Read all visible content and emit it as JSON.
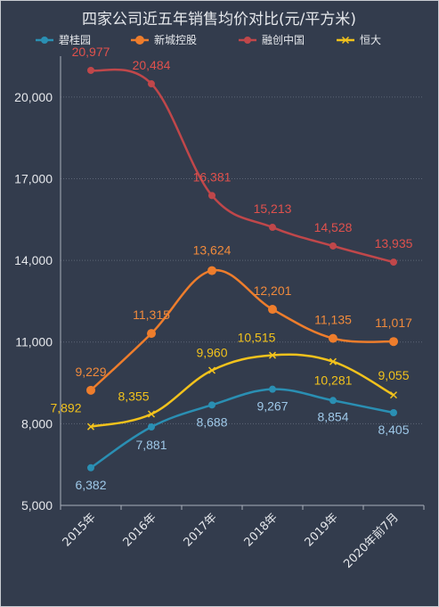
{
  "chart_data": {
    "type": "line",
    "title": "四家公司近五年销售均价对比(元/平方米)",
    "categories": [
      "2015年",
      "2016年",
      "2017年",
      "2018年",
      "2019年",
      "2020年前7月"
    ],
    "ylim": [
      5000,
      21500
    ],
    "yticks": [
      "5,000",
      "8,000",
      "11,000",
      "14,000",
      "17,000",
      "20,000"
    ],
    "ytick_values": [
      5000,
      8000,
      11000,
      14000,
      17000,
      20000
    ],
    "grid": true,
    "legend_position": "top",
    "series": [
      {
        "name": "碧桂园",
        "color": "#2a8fb3",
        "label_color": "#9ec8e8",
        "marker": "circle",
        "values": [
          6382,
          7881,
          8688,
          9267,
          8854,
          8405
        ],
        "labels": [
          "6,382",
          "7,881",
          "8,688",
          "9,267",
          "8,854",
          "8,405"
        ]
      },
      {
        "name": "新城控股",
        "color": "#ee7d2c",
        "label_color": "#f08a3c",
        "marker": "circle-large",
        "values": [
          9229,
          11315,
          13624,
          12201,
          11135,
          11017
        ],
        "labels": [
          "9,229",
          "11,315",
          "13,624",
          "12,201",
          "11,135",
          "11,017"
        ]
      },
      {
        "name": "融创中国",
        "color": "#c0474a",
        "label_color": "#e0514d",
        "marker": "circle",
        "values": [
          20977,
          20484,
          16381,
          15213,
          14528,
          13935
        ],
        "labels": [
          "20,977",
          "20,484",
          "16,381",
          "15,213",
          "14,528",
          "13,935"
        ]
      },
      {
        "name": "恒大",
        "color": "#f2c21c",
        "label_color": "#f2c21c",
        "marker": "x",
        "values": [
          7892,
          8355,
          9960,
          10515,
          10281,
          9055
        ],
        "labels": [
          "7,892",
          "8,355",
          "9,960",
          "10,515",
          "10,281",
          "9,055"
        ]
      }
    ]
  }
}
